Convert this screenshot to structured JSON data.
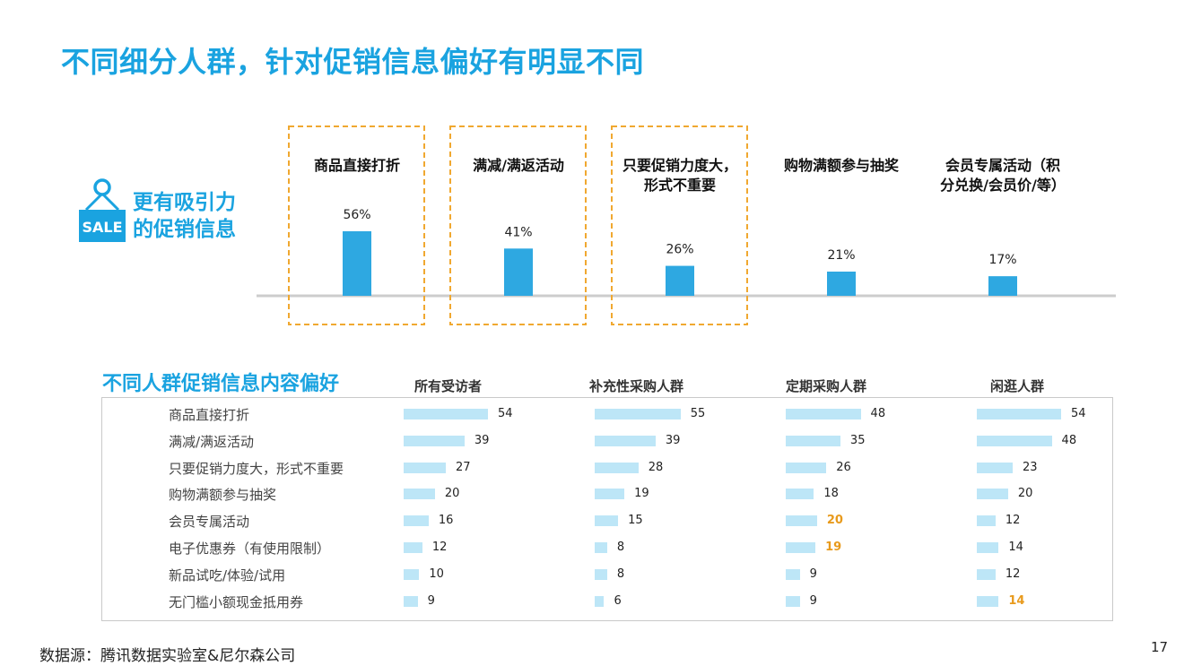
{
  "title": "不同细分人群，针对促销信息偏好有明显不同",
  "attract_block": {
    "icon_text": "SALE",
    "line1": "更有吸引力",
    "line2": "的促销信息"
  },
  "section_title": "不同人群促销信息内容偏好",
  "source": "数据源：腾讯数据实验室&尼尔森公司",
  "page_number": "17",
  "colors": {
    "accent": "#1aa3e0",
    "bar": "#2ea8e1",
    "mini_bar": "#bde6f7",
    "highlight_box": "#f0a830",
    "highlight_value": "#e89a1c",
    "axis": "#cccccc"
  },
  "chart_data": [
    {
      "type": "bar",
      "categories": [
        [
          "商品直接打折"
        ],
        [
          "满减/满返活动"
        ],
        [
          "只要促销力度大，",
          "形式不重要"
        ],
        [
          "购物满额参与抽奖"
        ],
        [
          "会员专属活动（积",
          "分兑换/会员价/等）"
        ]
      ],
      "values": [
        56,
        41,
        26,
        21,
        17
      ],
      "value_labels": [
        "56%",
        "41%",
        "26%",
        "21%",
        "17%"
      ],
      "highlighted": [
        true,
        true,
        true,
        false,
        false
      ],
      "ylim": [
        0,
        60
      ]
    },
    {
      "type": "table",
      "columns": [
        "所有受访者",
        "补充性采购人群",
        "定期采购人群",
        "闲逛人群"
      ],
      "rows": [
        {
          "label": "商品直接打折",
          "values": [
            54,
            55,
            48,
            54
          ],
          "highlight": [
            false,
            false,
            false,
            false
          ]
        },
        {
          "label": "满减/满返活动",
          "values": [
            39,
            39,
            35,
            48
          ],
          "highlight": [
            false,
            false,
            false,
            false
          ]
        },
        {
          "label": "只要促销力度大，形式不重要",
          "values": [
            27,
            28,
            26,
            23
          ],
          "highlight": [
            false,
            false,
            false,
            false
          ]
        },
        {
          "label": "购物满额参与抽奖",
          "values": [
            20,
            19,
            18,
            20
          ],
          "highlight": [
            false,
            false,
            false,
            false
          ]
        },
        {
          "label": "会员专属活动",
          "values": [
            16,
            15,
            20,
            12
          ],
          "highlight": [
            false,
            false,
            true,
            false
          ]
        },
        {
          "label": "电子优惠券（有使用限制）",
          "values": [
            12,
            8,
            19,
            14
          ],
          "highlight": [
            false,
            false,
            true,
            false
          ]
        },
        {
          "label": "新品试吃/体验/试用",
          "values": [
            10,
            8,
            9,
            12
          ],
          "highlight": [
            false,
            false,
            false,
            false
          ]
        },
        {
          "label": "无门槛小额现金抵用券",
          "values": [
            9,
            6,
            9,
            14
          ],
          "highlight": [
            false,
            false,
            false,
            true
          ]
        }
      ],
      "xlim": [
        0,
        55
      ]
    }
  ]
}
